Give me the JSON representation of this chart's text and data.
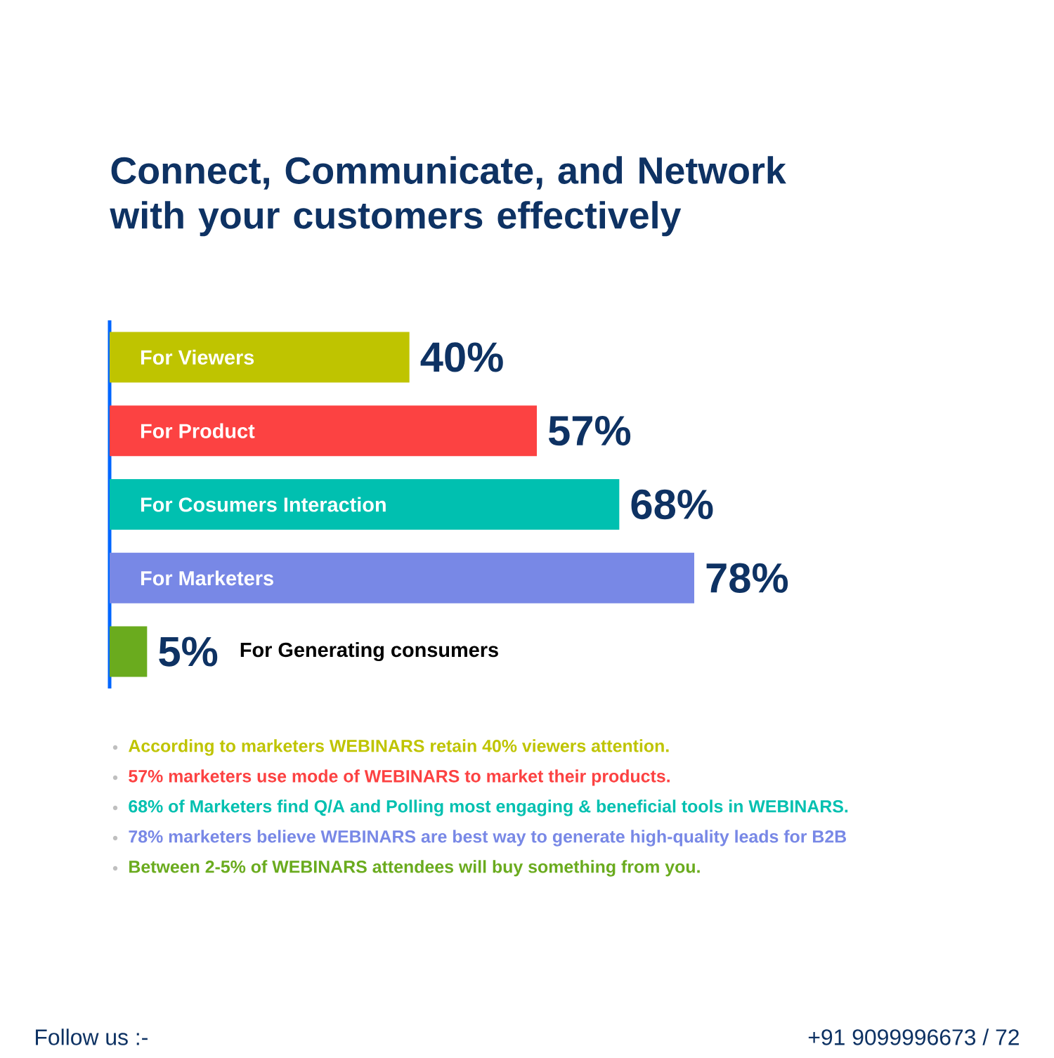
{
  "chart_data": {
    "type": "bar",
    "orientation": "horizontal",
    "title": "Connect, Communicate, and Network with your customers effectively",
    "categories": [
      "For Viewers",
      "For Product",
      "For Cosumers Interaction",
      "For Marketers",
      "For Generating consumers"
    ],
    "values": [
      40,
      57,
      68,
      78,
      5
    ],
    "value_labels": [
      "40%",
      "57%",
      "68%",
      "78%",
      "5%"
    ],
    "colors": [
      "#bfc400",
      "#fc4242",
      "#00c0b0",
      "#7888e6",
      "#6aab1e"
    ],
    "annotations": [
      "According to marketers WEBINARS retain 40% viewers attention.",
      "57% marketers use mode of WEBINARS to market their products.",
      "68% of Marketers find Q/A and Polling most engaging & beneficial tools in WEBINARS.",
      "78% marketers believe WEBINARS are best way to generate high-quality leads for B2B",
      "Between 2-5% of WEBINARS attendees will buy something from you.",
      "Follow us :-",
      "+91 9099996673 / 72"
    ]
  }
}
